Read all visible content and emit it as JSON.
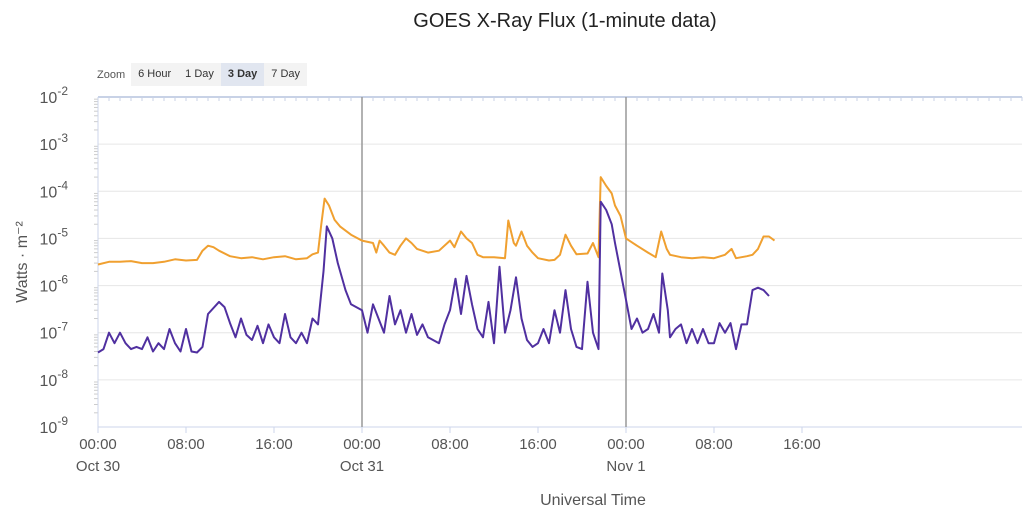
{
  "chart_data": {
    "type": "line",
    "title": "GOES X-Ray Flux (1-minute data)",
    "xlabel": "Universal Time",
    "ylabel": "Watts · m⁻²",
    "yscale": "log",
    "ylim": [
      1e-09,
      0.01
    ],
    "x_unit": "hours since Oct 30 00:00 UTC",
    "xlim": [
      0,
      84
    ],
    "x_ticks": [
      {
        "t": 0,
        "label": "00:00",
        "date": "Oct 30"
      },
      {
        "t": 8,
        "label": "08:00",
        "date": ""
      },
      {
        "t": 16,
        "label": "16:00",
        "date": ""
      },
      {
        "t": 24,
        "label": "00:00",
        "date": "Oct 31"
      },
      {
        "t": 32,
        "label": "08:00",
        "date": ""
      },
      {
        "t": 40,
        "label": "16:00",
        "date": ""
      },
      {
        "t": 48,
        "label": "00:00",
        "date": "Nov 1"
      },
      {
        "t": 56,
        "label": "08:00",
        "date": ""
      },
      {
        "t": 64,
        "label": "16:00",
        "date": ""
      }
    ],
    "y_ticks": [
      {
        "base": "10",
        "exp": "-2"
      },
      {
        "base": "10",
        "exp": "-3"
      },
      {
        "base": "10",
        "exp": "-4"
      },
      {
        "base": "10",
        "exp": "-5"
      },
      {
        "base": "10",
        "exp": "-6"
      },
      {
        "base": "10",
        "exp": "-7"
      },
      {
        "base": "10",
        "exp": "-8"
      },
      {
        "base": "10",
        "exp": "-9"
      }
    ],
    "day_boundaries": [
      24,
      48
    ],
    "grid": true,
    "series": [
      {
        "color": "#f0a030",
        "points": [
          [
            0,
            2.8e-06
          ],
          [
            1,
            3.2e-06
          ],
          [
            2,
            3.2e-06
          ],
          [
            3,
            3.3e-06
          ],
          [
            4,
            3e-06
          ],
          [
            5,
            3e-06
          ],
          [
            6,
            3.2e-06
          ],
          [
            7,
            3.6e-06
          ],
          [
            8,
            3.4e-06
          ],
          [
            9,
            3.5e-06
          ],
          [
            9.5,
            5.5e-06
          ],
          [
            10,
            7e-06
          ],
          [
            10.5,
            6.5e-06
          ],
          [
            11,
            5.5e-06
          ],
          [
            12,
            4.2e-06
          ],
          [
            13,
            3.8e-06
          ],
          [
            14,
            4e-06
          ],
          [
            15,
            3.6e-06
          ],
          [
            16,
            4e-06
          ],
          [
            17,
            4.2e-06
          ],
          [
            18,
            3.6e-06
          ],
          [
            19,
            3.8e-06
          ],
          [
            19.5,
            4.6e-06
          ],
          [
            20,
            5e-06
          ],
          [
            20.3,
            2e-05
          ],
          [
            20.6,
            7e-05
          ],
          [
            21,
            5e-05
          ],
          [
            21.5,
            2.5e-05
          ],
          [
            22,
            1.8e-05
          ],
          [
            23,
            1.2e-05
          ],
          [
            24,
            9e-06
          ],
          [
            25,
            8e-06
          ],
          [
            25.3,
            5e-06
          ],
          [
            25.6,
            9e-06
          ],
          [
            26,
            7e-06
          ],
          [
            26.5,
            5e-06
          ],
          [
            27,
            4.5e-06
          ],
          [
            27.5,
            7e-06
          ],
          [
            28,
            1e-05
          ],
          [
            28.5,
            8e-06
          ],
          [
            29,
            6e-06
          ],
          [
            30,
            5e-06
          ],
          [
            31,
            5.5e-06
          ],
          [
            32,
            9e-06
          ],
          [
            32.4,
            6.5e-06
          ],
          [
            33,
            1.4e-05
          ],
          [
            33.5,
            1e-05
          ],
          [
            34,
            8e-06
          ],
          [
            34.5,
            4.5e-06
          ],
          [
            35,
            4e-06
          ],
          [
            36,
            4e-06
          ],
          [
            37,
            3.8e-06
          ],
          [
            37.3,
            2.4e-05
          ],
          [
            37.8,
            8e-06
          ],
          [
            38,
            7e-06
          ],
          [
            38.5,
            1.4e-05
          ],
          [
            39,
            7e-06
          ],
          [
            39.5,
            5e-06
          ],
          [
            40,
            3.8e-06
          ],
          [
            41,
            3.4e-06
          ],
          [
            41.5,
            3.5e-06
          ],
          [
            42,
            4.5e-06
          ],
          [
            42.5,
            1.2e-05
          ],
          [
            43,
            7e-06
          ],
          [
            43.5,
            4.6e-06
          ],
          [
            44.5,
            4.8e-06
          ],
          [
            45,
            8e-06
          ],
          [
            45.5,
            4e-06
          ],
          [
            45.7,
            0.0002
          ],
          [
            46.2,
            0.00013
          ],
          [
            46.7,
            9e-05
          ],
          [
            47,
            5e-05
          ],
          [
            47.5,
            3e-05
          ],
          [
            48,
            1e-05
          ],
          [
            49,
            7e-06
          ],
          [
            50,
            5e-06
          ],
          [
            50.7,
            4e-06
          ],
          [
            51.2,
            1.4e-05
          ],
          [
            51.7,
            6e-06
          ],
          [
            52,
            4.5e-06
          ],
          [
            53,
            4e-06
          ],
          [
            54,
            3.8e-06
          ],
          [
            55,
            4e-06
          ],
          [
            56,
            3.8e-06
          ],
          [
            57,
            4.5e-06
          ],
          [
            57.6,
            6e-06
          ],
          [
            58,
            3.8e-06
          ],
          [
            59,
            4.2e-06
          ],
          [
            59.5,
            4.5e-06
          ],
          [
            60,
            6e-06
          ],
          [
            60.5,
            1.1e-05
          ],
          [
            61,
            1.1e-05
          ],
          [
            61.5,
            9e-06
          ]
        ]
      },
      {
        "color": "#5030a0",
        "points": [
          [
            0,
            3.8e-08
          ],
          [
            0.5,
            4.5e-08
          ],
          [
            1,
            1e-07
          ],
          [
            1.5,
            6e-08
          ],
          [
            2,
            1e-07
          ],
          [
            2.5,
            6e-08
          ],
          [
            3,
            4.5e-08
          ],
          [
            3.5,
            5e-08
          ],
          [
            4,
            4.5e-08
          ],
          [
            4.5,
            8e-08
          ],
          [
            5,
            4e-08
          ],
          [
            5.5,
            6e-08
          ],
          [
            6,
            4.5e-08
          ],
          [
            6.5,
            1.2e-07
          ],
          [
            7,
            6e-08
          ],
          [
            7.5,
            4e-08
          ],
          [
            8,
            1.2e-07
          ],
          [
            8.5,
            4e-08
          ],
          [
            9,
            3.8e-08
          ],
          [
            9.5,
            5e-08
          ],
          [
            10,
            2.5e-07
          ],
          [
            11,
            4.5e-07
          ],
          [
            11.5,
            3.5e-07
          ],
          [
            12,
            1.6e-07
          ],
          [
            12.5,
            8e-08
          ],
          [
            13,
            2e-07
          ],
          [
            13.5,
            9e-08
          ],
          [
            14,
            7e-08
          ],
          [
            14.5,
            1.4e-07
          ],
          [
            15,
            6e-08
          ],
          [
            15.5,
            1.5e-07
          ],
          [
            16,
            8e-08
          ],
          [
            16.5,
            6e-08
          ],
          [
            17,
            2.5e-07
          ],
          [
            17.5,
            8e-08
          ],
          [
            18,
            6e-08
          ],
          [
            18.5,
            1e-07
          ],
          [
            19,
            6e-08
          ],
          [
            19.5,
            2e-07
          ],
          [
            20,
            1.5e-07
          ],
          [
            20.5,
            2e-06
          ],
          [
            20.8,
            1.8e-05
          ],
          [
            21.3,
            1e-05
          ],
          [
            21.8,
            3e-06
          ],
          [
            22.5,
            8e-07
          ],
          [
            23,
            4e-07
          ],
          [
            24,
            3e-07
          ],
          [
            24.5,
            1e-07
          ],
          [
            25,
            4e-07
          ],
          [
            25.5,
            2e-07
          ],
          [
            26,
            1e-07
          ],
          [
            26.5,
            6e-07
          ],
          [
            27,
            1.5e-07
          ],
          [
            27.5,
            3e-07
          ],
          [
            28,
            1e-07
          ],
          [
            28.5,
            2.5e-07
          ],
          [
            29,
            9e-08
          ],
          [
            29.5,
            1.5e-07
          ],
          [
            30,
            8e-08
          ],
          [
            31,
            6e-08
          ],
          [
            31.5,
            1.5e-07
          ],
          [
            32,
            3e-07
          ],
          [
            32.5,
            1.4e-06
          ],
          [
            33,
            2.5e-07
          ],
          [
            33.5,
            1.6e-06
          ],
          [
            34,
            4e-07
          ],
          [
            34.5,
            1.2e-07
          ],
          [
            35,
            8e-08
          ],
          [
            35.5,
            4.5e-07
          ],
          [
            36,
            6e-08
          ],
          [
            36.5,
            2.5e-06
          ],
          [
            37,
            1e-07
          ],
          [
            37.5,
            3e-07
          ],
          [
            38,
            1.5e-06
          ],
          [
            38.5,
            2e-07
          ],
          [
            39,
            7e-08
          ],
          [
            39.5,
            5e-08
          ],
          [
            40,
            6e-08
          ],
          [
            40.5,
            1.2e-07
          ],
          [
            41,
            6e-08
          ],
          [
            41.5,
            3e-07
          ],
          [
            42,
            1e-07
          ],
          [
            42.5,
            8e-07
          ],
          [
            43,
            1.2e-07
          ],
          [
            43.5,
            5e-08
          ],
          [
            44,
            4.5e-08
          ],
          [
            44.5,
            1.2e-06
          ],
          [
            45,
            1e-07
          ],
          [
            45.5,
            4.5e-08
          ],
          [
            45.7,
            6e-05
          ],
          [
            46.2,
            4e-05
          ],
          [
            46.7,
            2e-05
          ],
          [
            47,
            8e-06
          ],
          [
            47.5,
            2e-06
          ],
          [
            48,
            5e-07
          ],
          [
            48.5,
            1.2e-07
          ],
          [
            49,
            2e-07
          ],
          [
            49.5,
            1e-07
          ],
          [
            50,
            1.2e-07
          ],
          [
            50.5,
            2.5e-07
          ],
          [
            51,
            1e-07
          ],
          [
            51.3,
            1.8e-06
          ],
          [
            51.8,
            3e-07
          ],
          [
            52,
            8e-08
          ],
          [
            52.5,
            1.2e-07
          ],
          [
            53,
            1.5e-07
          ],
          [
            53.5,
            6e-08
          ],
          [
            54,
            1.2e-07
          ],
          [
            54.5,
            6e-08
          ],
          [
            55,
            1.2e-07
          ],
          [
            55.5,
            6e-08
          ],
          [
            56,
            6e-08
          ],
          [
            56.5,
            1.6e-07
          ],
          [
            57,
            1e-07
          ],
          [
            57.5,
            1.6e-07
          ],
          [
            58,
            4.5e-08
          ],
          [
            58.5,
            1.5e-07
          ],
          [
            59,
            1.5e-07
          ],
          [
            59.5,
            8e-07
          ],
          [
            60,
            9e-07
          ],
          [
            60.5,
            8e-07
          ],
          [
            61,
            6e-07
          ]
        ]
      }
    ]
  },
  "zoom": {
    "label": "Zoom",
    "options": [
      "6 Hour",
      "1 Day",
      "3 Day",
      "7 Day"
    ],
    "selected": "3 Day"
  }
}
